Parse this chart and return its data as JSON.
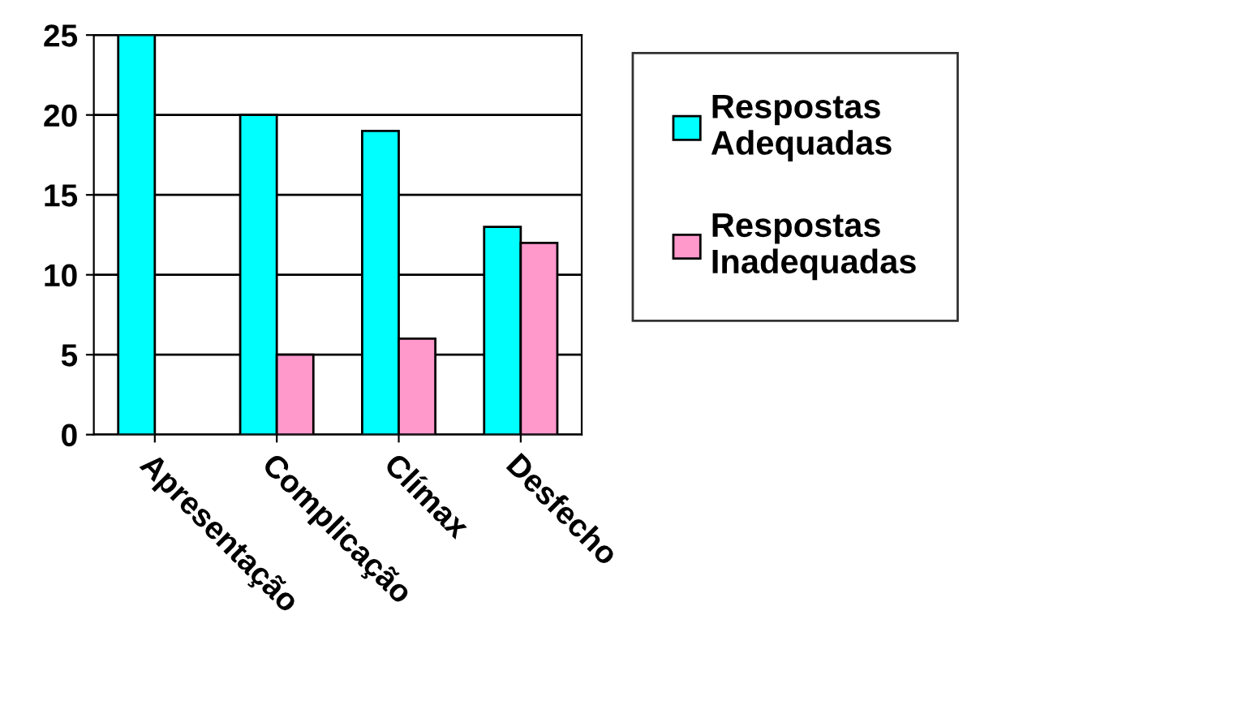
{
  "chart_data": {
    "type": "bar",
    "categories": [
      "Apresentação",
      "Complicação",
      "Clímax",
      "Desfecho"
    ],
    "series": [
      {
        "name": "Respostas Adequadas",
        "color": "#00ffff",
        "values": [
          25,
          20,
          19,
          13
        ]
      },
      {
        "name": "Respostas Inadequadas",
        "color": "#ff99cc",
        "values": [
          null,
          5,
          6,
          12
        ]
      }
    ],
    "ylim": [
      0,
      25
    ],
    "yticks": [
      0,
      5,
      10,
      15,
      20,
      25
    ],
    "grid": "y",
    "legend": "right"
  }
}
